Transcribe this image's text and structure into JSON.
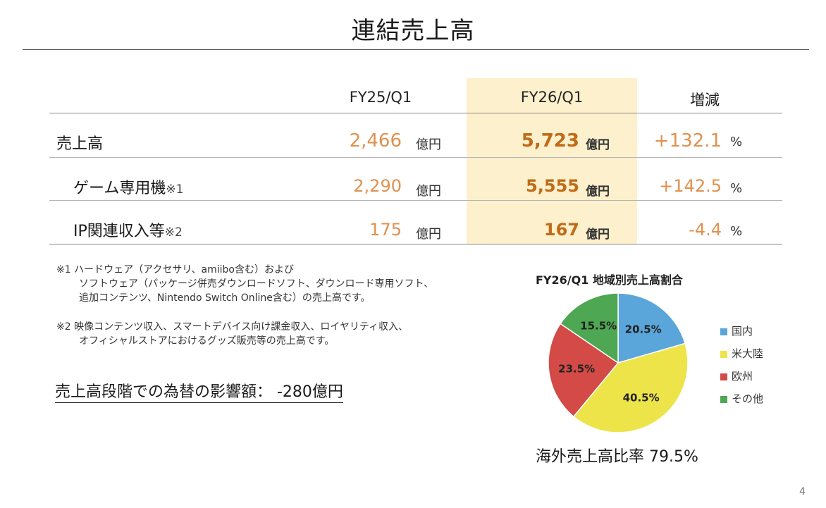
{
  "slide": {
    "title": "連結売上高",
    "page_number": "4"
  },
  "table": {
    "headers": [
      "FY25/Q1",
      "FY26/Q1",
      "増減"
    ],
    "rows": [
      {
        "label": "売上高",
        "note": "",
        "fy25": "2,466",
        "fy25_unit": "億円",
        "fy26": "5,723",
        "fy26_unit": "億円",
        "change": "+132.1",
        "change_unit": "%"
      },
      {
        "label": "ゲーム専用機",
        "note": "※1",
        "fy25": "2,290",
        "fy25_unit": "億円",
        "fy26": "5,555",
        "fy26_unit": "億円",
        "change": "+142.5",
        "change_unit": "%"
      },
      {
        "label": "IP関連収入等",
        "note": "※2",
        "fy25": "175",
        "fy25_unit": "億円",
        "fy26": "167",
        "fy26_unit": "億円",
        "change": "-4.4",
        "change_unit": "%"
      }
    ]
  },
  "notes": {
    "note1_line1": "※1 ハードウェア（アクセサリ、amiibo含む）および",
    "note1_line2": "ソフトウェア（パッケージ併売ダウンロードソフト、ダウンロード専用ソフト、",
    "note1_line3": "追加コンテンツ、Nintendo Switch Online含む）の売上高です。",
    "note2_line1": "※2 映像コンテンツ収入、スマートデバイス向け課金収入、ロイヤリティ収入、",
    "note2_line2": "オフィシャルストアにおけるグッズ販売等の売上高です。"
  },
  "fx_impact": "売上高段階での為替の影響額：  -280億円",
  "chart_data": {
    "type": "pie",
    "title": "FY26/Q1 地域別売上高割合",
    "labels": [
      "国内",
      "米大陸",
      "欧州",
      "その他"
    ],
    "values": [
      20.5,
      40.5,
      23.5,
      15.5
    ],
    "value_labels": [
      "20.5%",
      "40.5%",
      "23.5%",
      "15.5%"
    ],
    "colors": [
      "#5aa5d9",
      "#ede44a",
      "#d34a47",
      "#4ea752"
    ],
    "legend_position": "right"
  },
  "overseas_ratio": "海外売上高比率 79.5%",
  "colors": {
    "highlight_column": "#fdf0cd",
    "value_orange": "#e0914f",
    "value_bold": "#c06a17"
  }
}
